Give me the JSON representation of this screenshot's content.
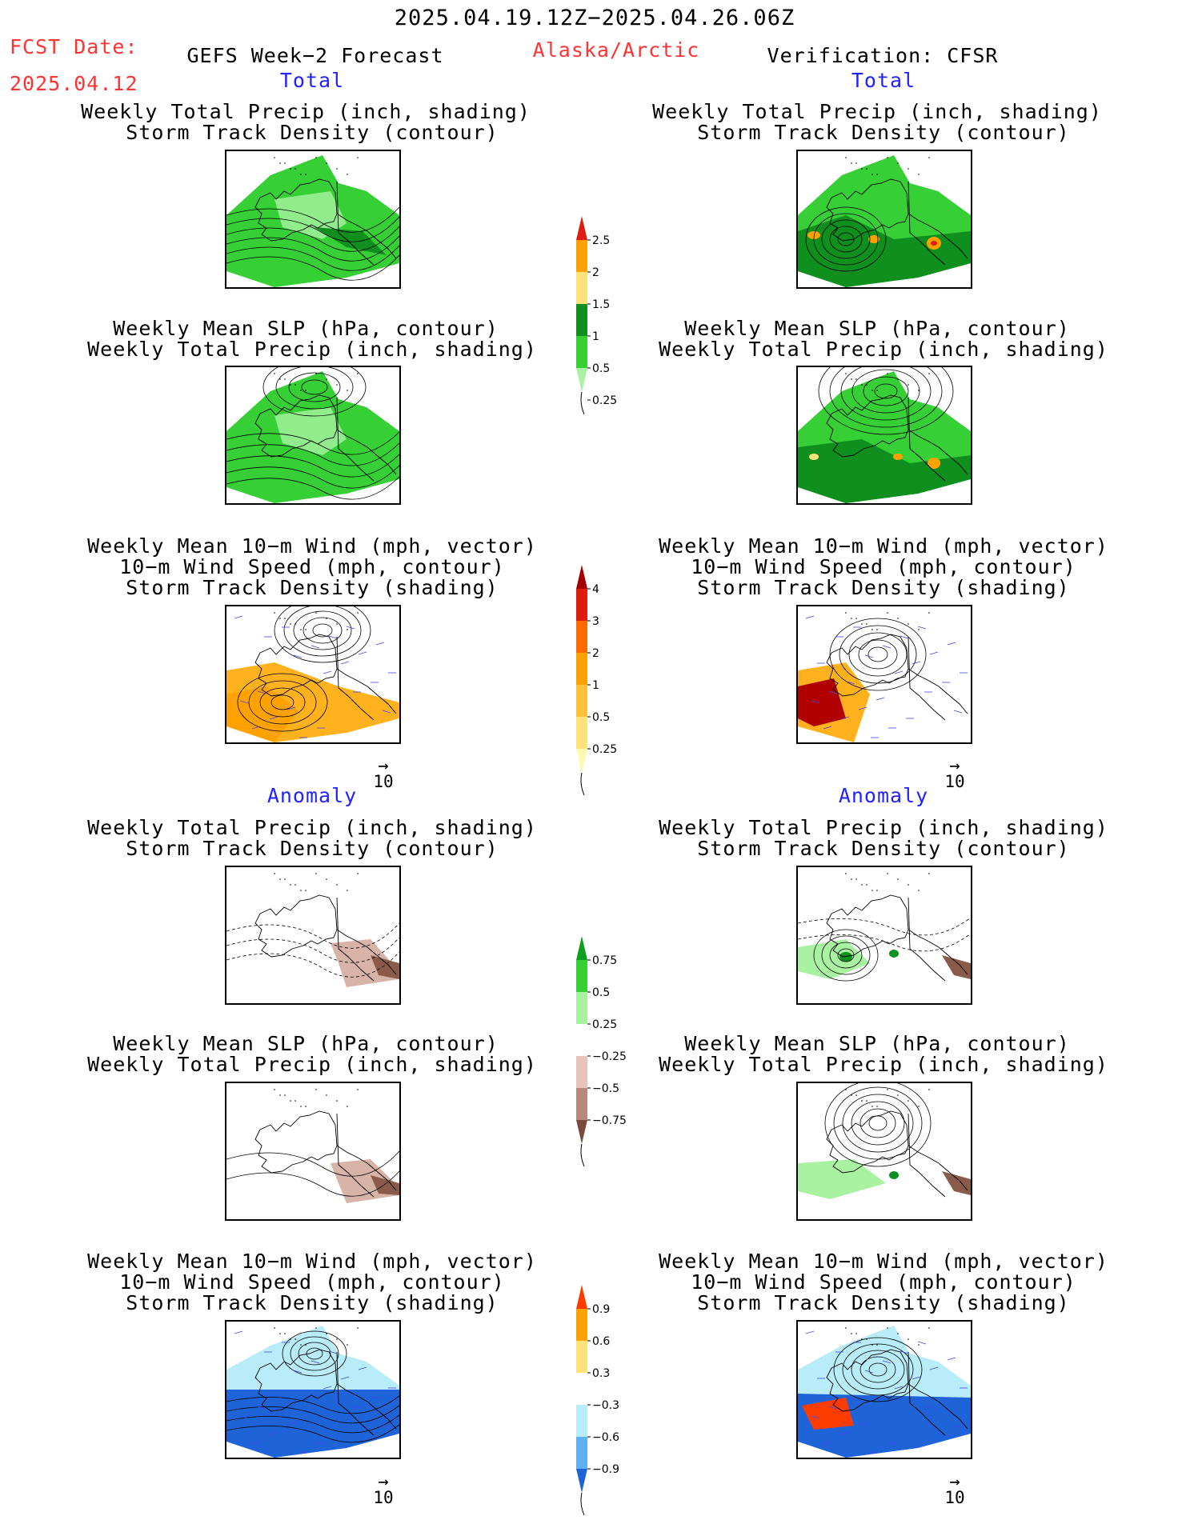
{
  "header": {
    "valid_period": "2025.04.19.12Z−2025.04.26.06Z",
    "fcst_label": "FCST Date:",
    "fcst_date": "2025.04.12",
    "model": "GEFS Week−2 Forecast",
    "region": "Alaska/Arctic",
    "verification": "Verification: CFSR"
  },
  "sections": {
    "total": "Total",
    "anomaly": "Anomaly"
  },
  "panel_titles": {
    "precip_storm": [
      "Weekly Total Precip (inch, shading)",
      "Storm Track Density (contour)"
    ],
    "slp_precip": [
      "Weekly Mean SLP (hPa, contour)",
      "Weekly Total Precip (inch, shading)"
    ],
    "wind_storm": [
      "Weekly Mean 10−m Wind (mph, vector)",
      "10−m Wind Speed (mph, contour)",
      "Storm Track Density (shading)"
    ]
  },
  "vector_ref": {
    "label": "10"
  },
  "colorbars": {
    "total_precip": {
      "levels": [
        "2.5",
        "2",
        "1.5",
        "1",
        "0.5",
        "0.25"
      ],
      "colors": [
        "#e01b10",
        "#ffa200",
        "#ffe27a",
        "#0e8f1e",
        "#36cf36",
        "#a9f2a1"
      ]
    },
    "total_storm": {
      "levels": [
        "4",
        "3",
        "2",
        "1",
        "0.5",
        "0.25"
      ],
      "colors": [
        "#a50000",
        "#e01b10",
        "#ff6a00",
        "#ffa200",
        "#ffc23a",
        "#ffe27a",
        "#fff8b0"
      ]
    },
    "anom_precip": {
      "levels": [
        "0.75",
        "0.5",
        "0.25",
        "−0.25",
        "−0.5",
        "−0.75"
      ],
      "colors": [
        "#0e9f1e",
        "#36cf36",
        "#a9f2a1",
        "#ffffff",
        "#e8c4b8",
        "#b88878",
        "#7a4a3a"
      ]
    },
    "anom_storm": {
      "levels": [
        "0.9",
        "0.6",
        "0.3",
        "−0.3",
        "−0.6",
        "−0.9"
      ],
      "colors": [
        "#ff3c00",
        "#ffa200",
        "#ffe27a",
        "#ffffff",
        "#b8ecf8",
        "#5fb0f0",
        "#1e64d8"
      ]
    }
  },
  "map_colors": {
    "land_green": "#36cf36",
    "light_green": "#a9f2a1",
    "dark_green": "#0e8f1e",
    "orange": "#ffa200",
    "yellow": "#ffe27a",
    "red": "#e01b10",
    "storm_orange": "#ffb21e",
    "storm_dark_red": "#b00000",
    "anom_brown": "#d8b4a8",
    "anom_dark_brown": "#8a5a4a",
    "anom_blue": "#1e64d8",
    "anom_lightblue": "#b8ecf8",
    "vector_blue": "#4444ee"
  }
}
